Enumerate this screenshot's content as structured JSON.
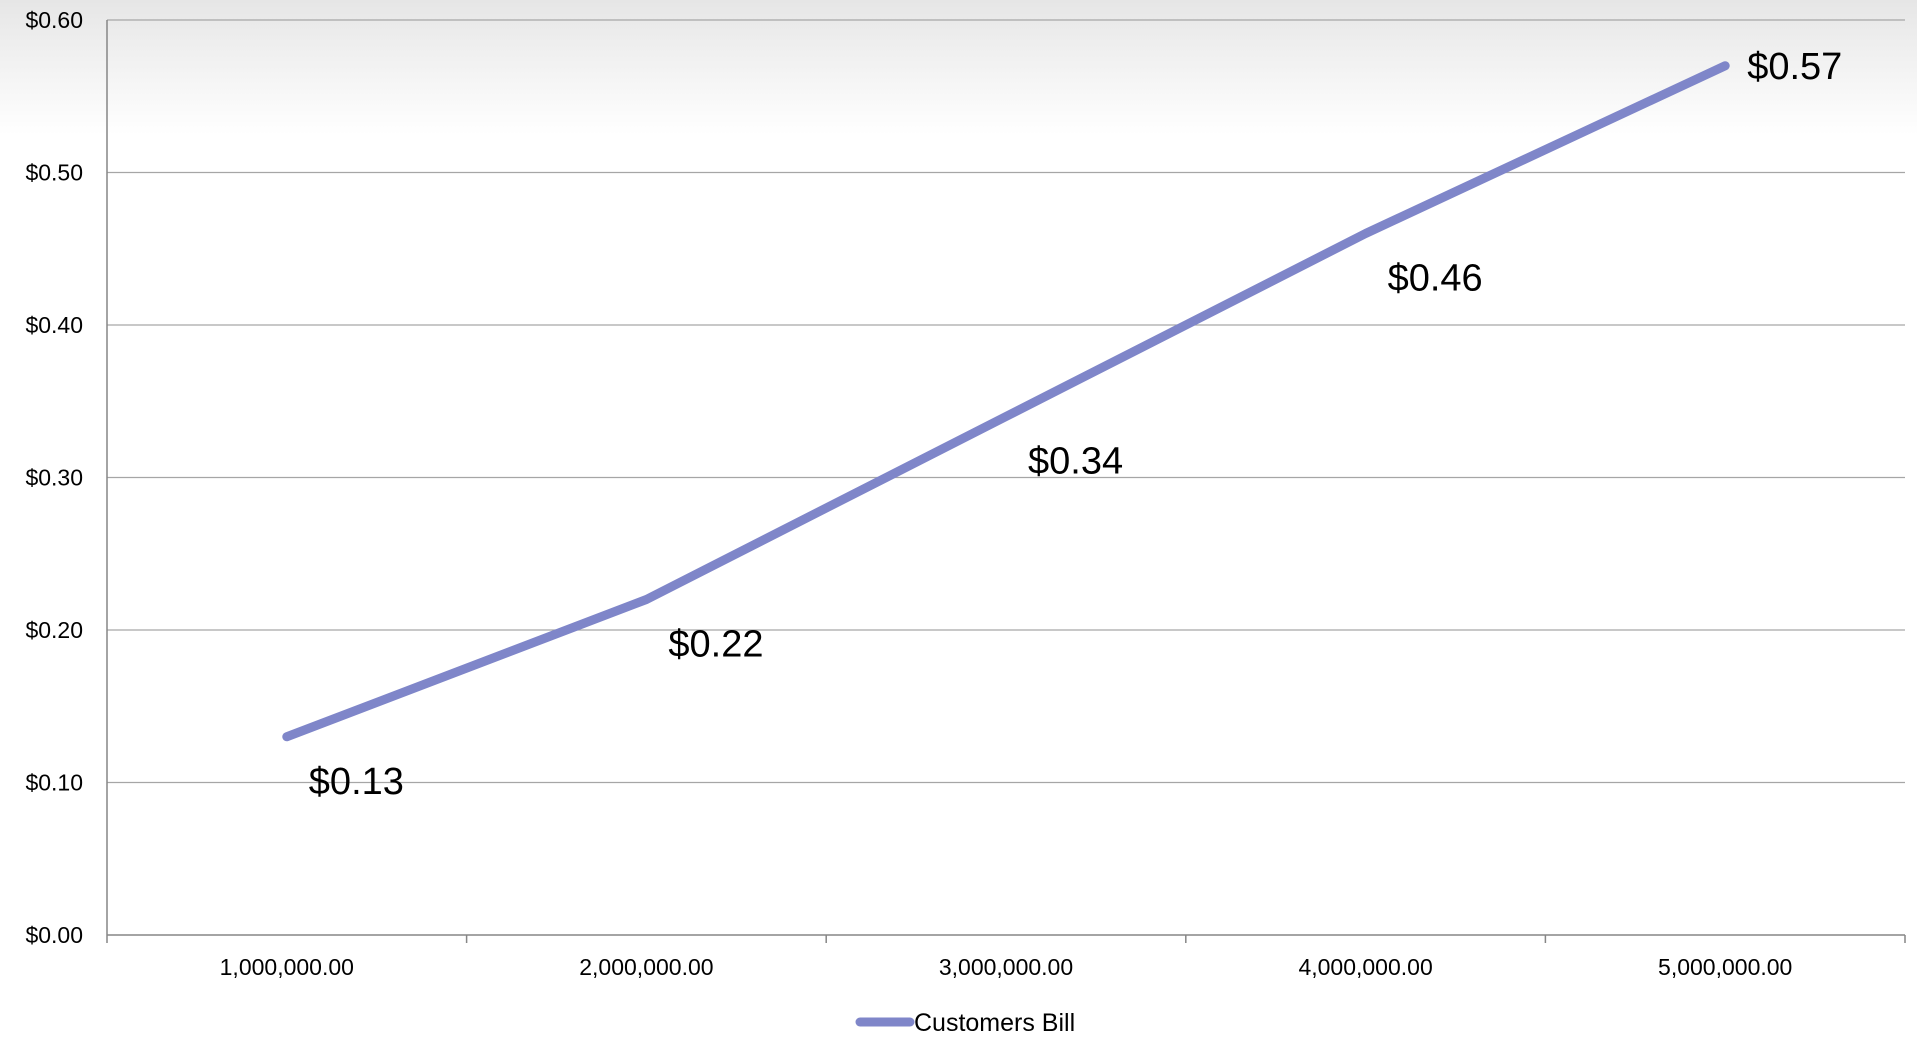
{
  "chart_data": {
    "type": "line",
    "title": "",
    "xlabel": "",
    "ylabel": "",
    "categories": [
      "1,000,000.00",
      "2,000,000.00",
      "3,000,000.00",
      "4,000,000.00",
      "5,000,000.00"
    ],
    "series": [
      {
        "name": "Customers Bill",
        "values": [
          0.13,
          0.22,
          0.34,
          0.46,
          0.57
        ],
        "labels": [
          "$0.13",
          "$0.22",
          "$0.34",
          "$0.46",
          "$0.57"
        ],
        "color": "#7f86c9"
      }
    ],
    "ylim": [
      0,
      0.6
    ],
    "yticks": [
      0,
      0.1,
      0.2,
      0.3,
      0.4,
      0.5,
      0.6
    ],
    "ytick_labels": [
      "$0.00",
      "$0.10",
      "$0.20",
      "$0.30",
      "$0.40",
      "$0.50",
      "$0.60"
    ],
    "grid": true,
    "legend": "bottom",
    "gridline_color": "#a6a6a6"
  }
}
